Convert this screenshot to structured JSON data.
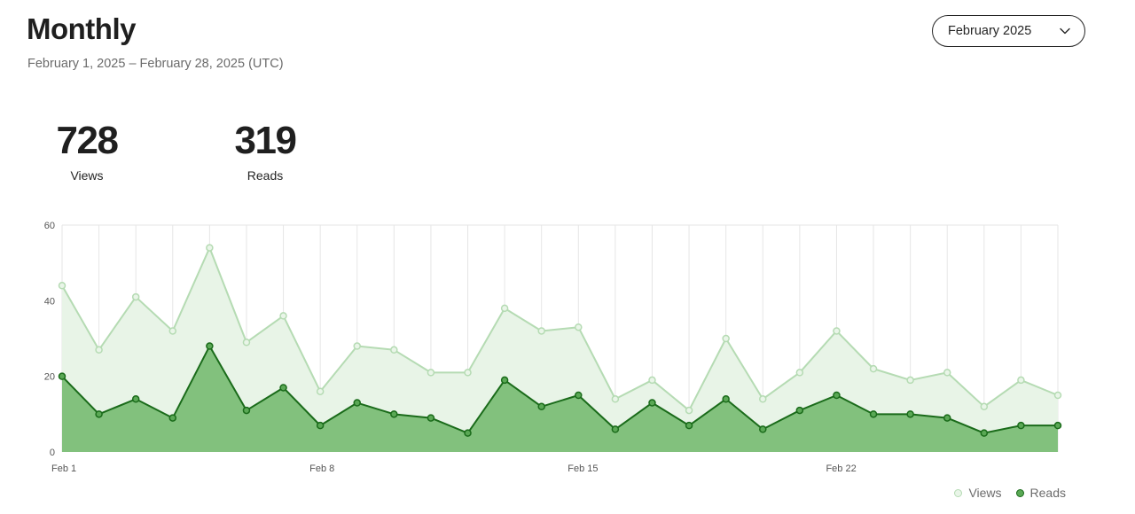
{
  "header": {
    "title": "Monthly",
    "date_range": "February 1, 2025 – February 28, 2025 (UTC)",
    "period_select": {
      "value": "February 2025",
      "icon": "chevron-down-icon"
    }
  },
  "stats": {
    "views": {
      "value": "728",
      "label": "Views"
    },
    "reads": {
      "value": "319",
      "label": "Reads"
    }
  },
  "colors": {
    "views_line": "#b5dbb3",
    "views_fill": "#e8f4e7",
    "reads_line": "#1a6b1a",
    "reads_fill": "#82c17d",
    "reads_point": "#5aa855",
    "grid": "#e6e6e6"
  },
  "chart_data": {
    "type": "area",
    "x": [
      "Feb 1",
      "Feb 2",
      "Feb 3",
      "Feb 4",
      "Feb 5",
      "Feb 6",
      "Feb 7",
      "Feb 8",
      "Feb 9",
      "Feb 10",
      "Feb 11",
      "Feb 12",
      "Feb 13",
      "Feb 14",
      "Feb 15",
      "Feb 16",
      "Feb 17",
      "Feb 18",
      "Feb 19",
      "Feb 20",
      "Feb 21",
      "Feb 22",
      "Feb 23",
      "Feb 24",
      "Feb 25",
      "Feb 26",
      "Feb 27",
      "Feb 28"
    ],
    "x_tick_labels": [
      "Feb 1",
      "Feb 8",
      "Feb 15",
      "Feb 22"
    ],
    "y_ticks": [
      0,
      20,
      40,
      60
    ],
    "ylim": [
      0,
      60
    ],
    "grid": "vertical",
    "legend_position": "bottom-right",
    "series": [
      {
        "name": "Views",
        "values": [
          44,
          27,
          41,
          32,
          54,
          29,
          36,
          16,
          28,
          27,
          21,
          21,
          38,
          32,
          33,
          14,
          19,
          11,
          30,
          14,
          21,
          32,
          22,
          19,
          21,
          12,
          19,
          15
        ]
      },
      {
        "name": "Reads",
        "values": [
          20,
          10,
          14,
          9,
          28,
          11,
          17,
          7,
          13,
          10,
          9,
          5,
          19,
          12,
          15,
          6,
          13,
          7,
          14,
          6,
          11,
          15,
          10,
          10,
          9,
          5,
          7,
          7
        ]
      }
    ]
  }
}
